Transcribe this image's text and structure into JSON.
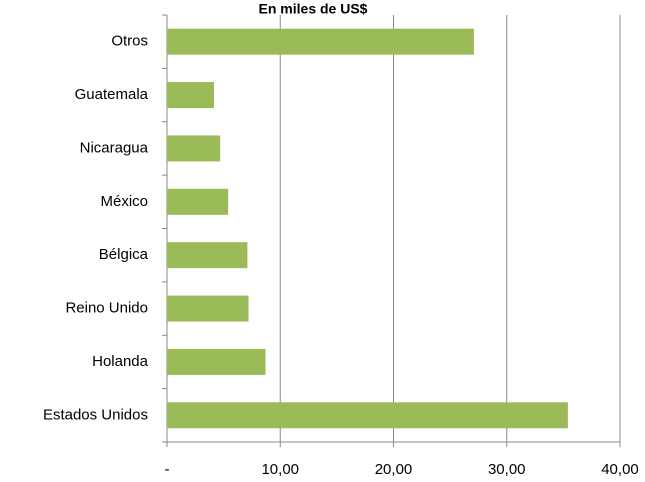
{
  "chart_data": {
    "type": "bar",
    "orientation": "horizontal",
    "title": "En miles de US$",
    "categories": [
      "Otros",
      "Guatemala",
      "Nicaragua",
      "México",
      "Bélgica",
      "Reino Unido",
      "Holanda",
      "Estados Unidos"
    ],
    "values": [
      27.1,
      4.15,
      4.7,
      5.4,
      7.1,
      7.2,
      8.7,
      35.4
    ],
    "color": "#9bbb59",
    "xlim": [
      0,
      40
    ],
    "xticks": [
      {
        "value": 0,
        "label": "-"
      },
      {
        "value": 10,
        "label": "10,00"
      },
      {
        "value": 20,
        "label": "20,00"
      },
      {
        "value": 30,
        "label": "30,00"
      },
      {
        "value": 40,
        "label": "40,00"
      }
    ],
    "grid": true
  }
}
